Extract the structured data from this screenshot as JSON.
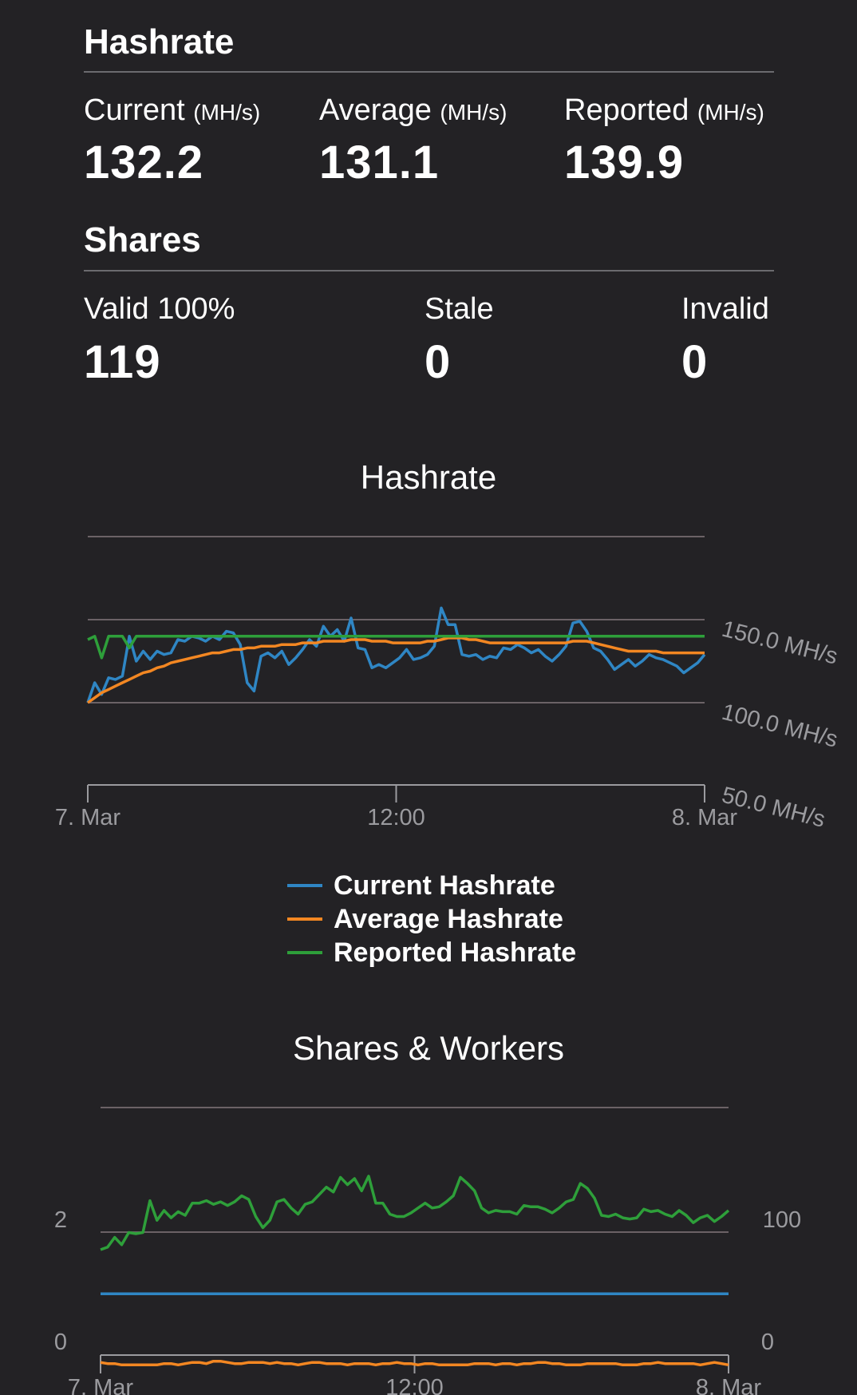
{
  "hashrate": {
    "title": "Hashrate",
    "stats": [
      {
        "label": "Current",
        "unit": "(MH/s)",
        "value": "132.2"
      },
      {
        "label": "Average",
        "unit": "(MH/s)",
        "value": "131.1"
      },
      {
        "label": "Reported",
        "unit": "(MH/s)",
        "value": "139.9"
      }
    ]
  },
  "shares": {
    "title": "Shares",
    "stats": [
      {
        "label": "Valid 100%",
        "value": "119"
      },
      {
        "label": "Stale",
        "value": "0"
      },
      {
        "label": "Invalid",
        "value": "0"
      }
    ]
  },
  "colors": {
    "current": "#2f86c4",
    "average": "#f38722",
    "reported": "#2e9f3a",
    "grid": "#6b6266",
    "axis": "#9b9b9f"
  },
  "chart_data": [
    {
      "type": "line",
      "title": "Hashrate",
      "x_labels": [
        "7. Mar",
        "12:00",
        "8. Mar"
      ],
      "y_ticks": [
        50,
        100,
        150
      ],
      "y_tick_labels": [
        "50.0 MH/s",
        "100.0 MH/s",
        "150.0 MH/s"
      ],
      "y_range": [
        50,
        200
      ],
      "grid": true,
      "legend": "bottom",
      "series": [
        {
          "name": "Current Hashrate",
          "color": "#2f86c4",
          "values": [
            100,
            112,
            105,
            115,
            114,
            116,
            140,
            125,
            131,
            126,
            131,
            129,
            130,
            138,
            137,
            140,
            139,
            137,
            140,
            138,
            143,
            142,
            135,
            112,
            107,
            128,
            130,
            127,
            131,
            123,
            127,
            132,
            138,
            134,
            146,
            140,
            144,
            137,
            151,
            133,
            132,
            121,
            123,
            121,
            124,
            127,
            132,
            126,
            127,
            129,
            134,
            157,
            147,
            147,
            129,
            128,
            129,
            126,
            128,
            127,
            133,
            132,
            135,
            133,
            130,
            132,
            128,
            125,
            129,
            134,
            148,
            149,
            143,
            133,
            131,
            126,
            120,
            123,
            126,
            122,
            125,
            129,
            127,
            126,
            124,
            122,
            118,
            121,
            124,
            129
          ]
        },
        {
          "name": "Average Hashrate",
          "color": "#f38722",
          "values": [
            100,
            103,
            106,
            108,
            110,
            112,
            114,
            116,
            118,
            119,
            121,
            122,
            124,
            125,
            126,
            127,
            128,
            129,
            130,
            130,
            131,
            132,
            132,
            133,
            133,
            134,
            134,
            134,
            135,
            135,
            135,
            136,
            136,
            136,
            137,
            137,
            137,
            137,
            138,
            138,
            138,
            137,
            137,
            137,
            136,
            136,
            136,
            136,
            136,
            137,
            137,
            138,
            139,
            139,
            139,
            138,
            138,
            137,
            136,
            136,
            136,
            136,
            136,
            136,
            136,
            136,
            136,
            136,
            136,
            136,
            137,
            137,
            137,
            136,
            135,
            134,
            133,
            132,
            131,
            131,
            131,
            131,
            131,
            130,
            130,
            130,
            130,
            130,
            130,
            130
          ]
        },
        {
          "name": "Reported Hashrate",
          "color": "#2e9f3a",
          "values": [
            138,
            140,
            127,
            140,
            140,
            140,
            133,
            140,
            140,
            140,
            140,
            140,
            140,
            140,
            140,
            140,
            140,
            140,
            140,
            140,
            140,
            140,
            140,
            140,
            140,
            140,
            140,
            140,
            140,
            140,
            140,
            140,
            140,
            140,
            140,
            140,
            140,
            140,
            140,
            140,
            140,
            140,
            140,
            140,
            140,
            140,
            140,
            140,
            140,
            140,
            140,
            140,
            140,
            140,
            140,
            140,
            140,
            140,
            140,
            140,
            140,
            140,
            140,
            140,
            140,
            140,
            140,
            140,
            140,
            140,
            140,
            140,
            140,
            140,
            140,
            140,
            140,
            140,
            140,
            140,
            140,
            140,
            140,
            140,
            140,
            140,
            140,
            140,
            140,
            140
          ]
        }
      ]
    },
    {
      "type": "line",
      "title": "Shares & Workers",
      "x_labels": [
        "7. Mar",
        "12:00",
        "8. Mar"
      ],
      "left_axis": {
        "ticks": [
          "0",
          "2"
        ]
      },
      "right_axis": {
        "ticks": [
          "0",
          "100"
        ]
      },
      "grid": true,
      "series": [
        {
          "axis": "right",
          "color": "#2e9f3a",
          "values": [
            86,
            88,
            96,
            90,
            100,
            99,
            100,
            126,
            110,
            118,
            112,
            117,
            114,
            124,
            124,
            126,
            123,
            125,
            122,
            125,
            130,
            127,
            113,
            104,
            110,
            125,
            127,
            120,
            115,
            123,
            125,
            131,
            137,
            133,
            145,
            139,
            144,
            134,
            146,
            124,
            124,
            115,
            113,
            113,
            116,
            120,
            124,
            120,
            121,
            125,
            130,
            145,
            140,
            134,
            120,
            116,
            118,
            117,
            117,
            115,
            122,
            121,
            121,
            119,
            116,
            120,
            125,
            127,
            140,
            136,
            128,
            114,
            113,
            115,
            112,
            111,
            112,
            119,
            117,
            118,
            115,
            113,
            118,
            114,
            108,
            112,
            114,
            109,
            113,
            118
          ]
        },
        {
          "axis": "left",
          "color": "#2f86c4",
          "values": [
            1,
            1,
            1,
            1,
            1,
            1,
            1,
            1,
            1,
            1,
            1,
            1,
            1,
            1,
            1,
            1,
            1,
            1,
            1,
            1,
            1,
            1,
            1,
            1,
            1,
            1,
            1,
            1,
            1,
            1,
            1,
            1,
            1,
            1,
            1,
            1,
            1,
            1,
            1,
            1,
            1,
            1,
            1,
            1,
            1,
            1,
            1,
            1,
            1,
            1,
            1,
            1,
            1,
            1,
            1,
            1,
            1,
            1,
            1,
            1,
            1,
            1,
            1,
            1,
            1,
            1,
            1,
            1,
            1,
            1,
            1,
            1,
            1,
            1,
            1,
            1,
            1,
            1,
            1,
            1,
            1,
            1,
            1,
            1,
            1,
            1,
            1,
            1,
            1,
            1
          ]
        },
        {
          "axis": "right",
          "color": "#f38722",
          "values": [
            -6,
            -7,
            -7,
            -8,
            -8,
            -8,
            -8,
            -8,
            -8,
            -7,
            -7,
            -8,
            -7,
            -6,
            -6,
            -7,
            -5,
            -5,
            -6,
            -7,
            -7,
            -6,
            -6,
            -6,
            -7,
            -6,
            -7,
            -7,
            -8,
            -7,
            -6,
            -6,
            -7,
            -7,
            -7,
            -8,
            -7,
            -7,
            -7,
            -8,
            -7,
            -7,
            -6,
            -7,
            -7,
            -8,
            -7,
            -7,
            -8,
            -8,
            -8,
            -8,
            -8,
            -7,
            -7,
            -7,
            -8,
            -7,
            -7,
            -8,
            -7,
            -7,
            -6,
            -6,
            -7,
            -7,
            -8,
            -8,
            -8,
            -7,
            -7,
            -7,
            -7,
            -7,
            -8,
            -8,
            -8,
            -7,
            -7,
            -6,
            -7,
            -7,
            -7,
            -7,
            -7,
            -8,
            -7,
            -6,
            -7,
            -8
          ]
        }
      ]
    }
  ]
}
